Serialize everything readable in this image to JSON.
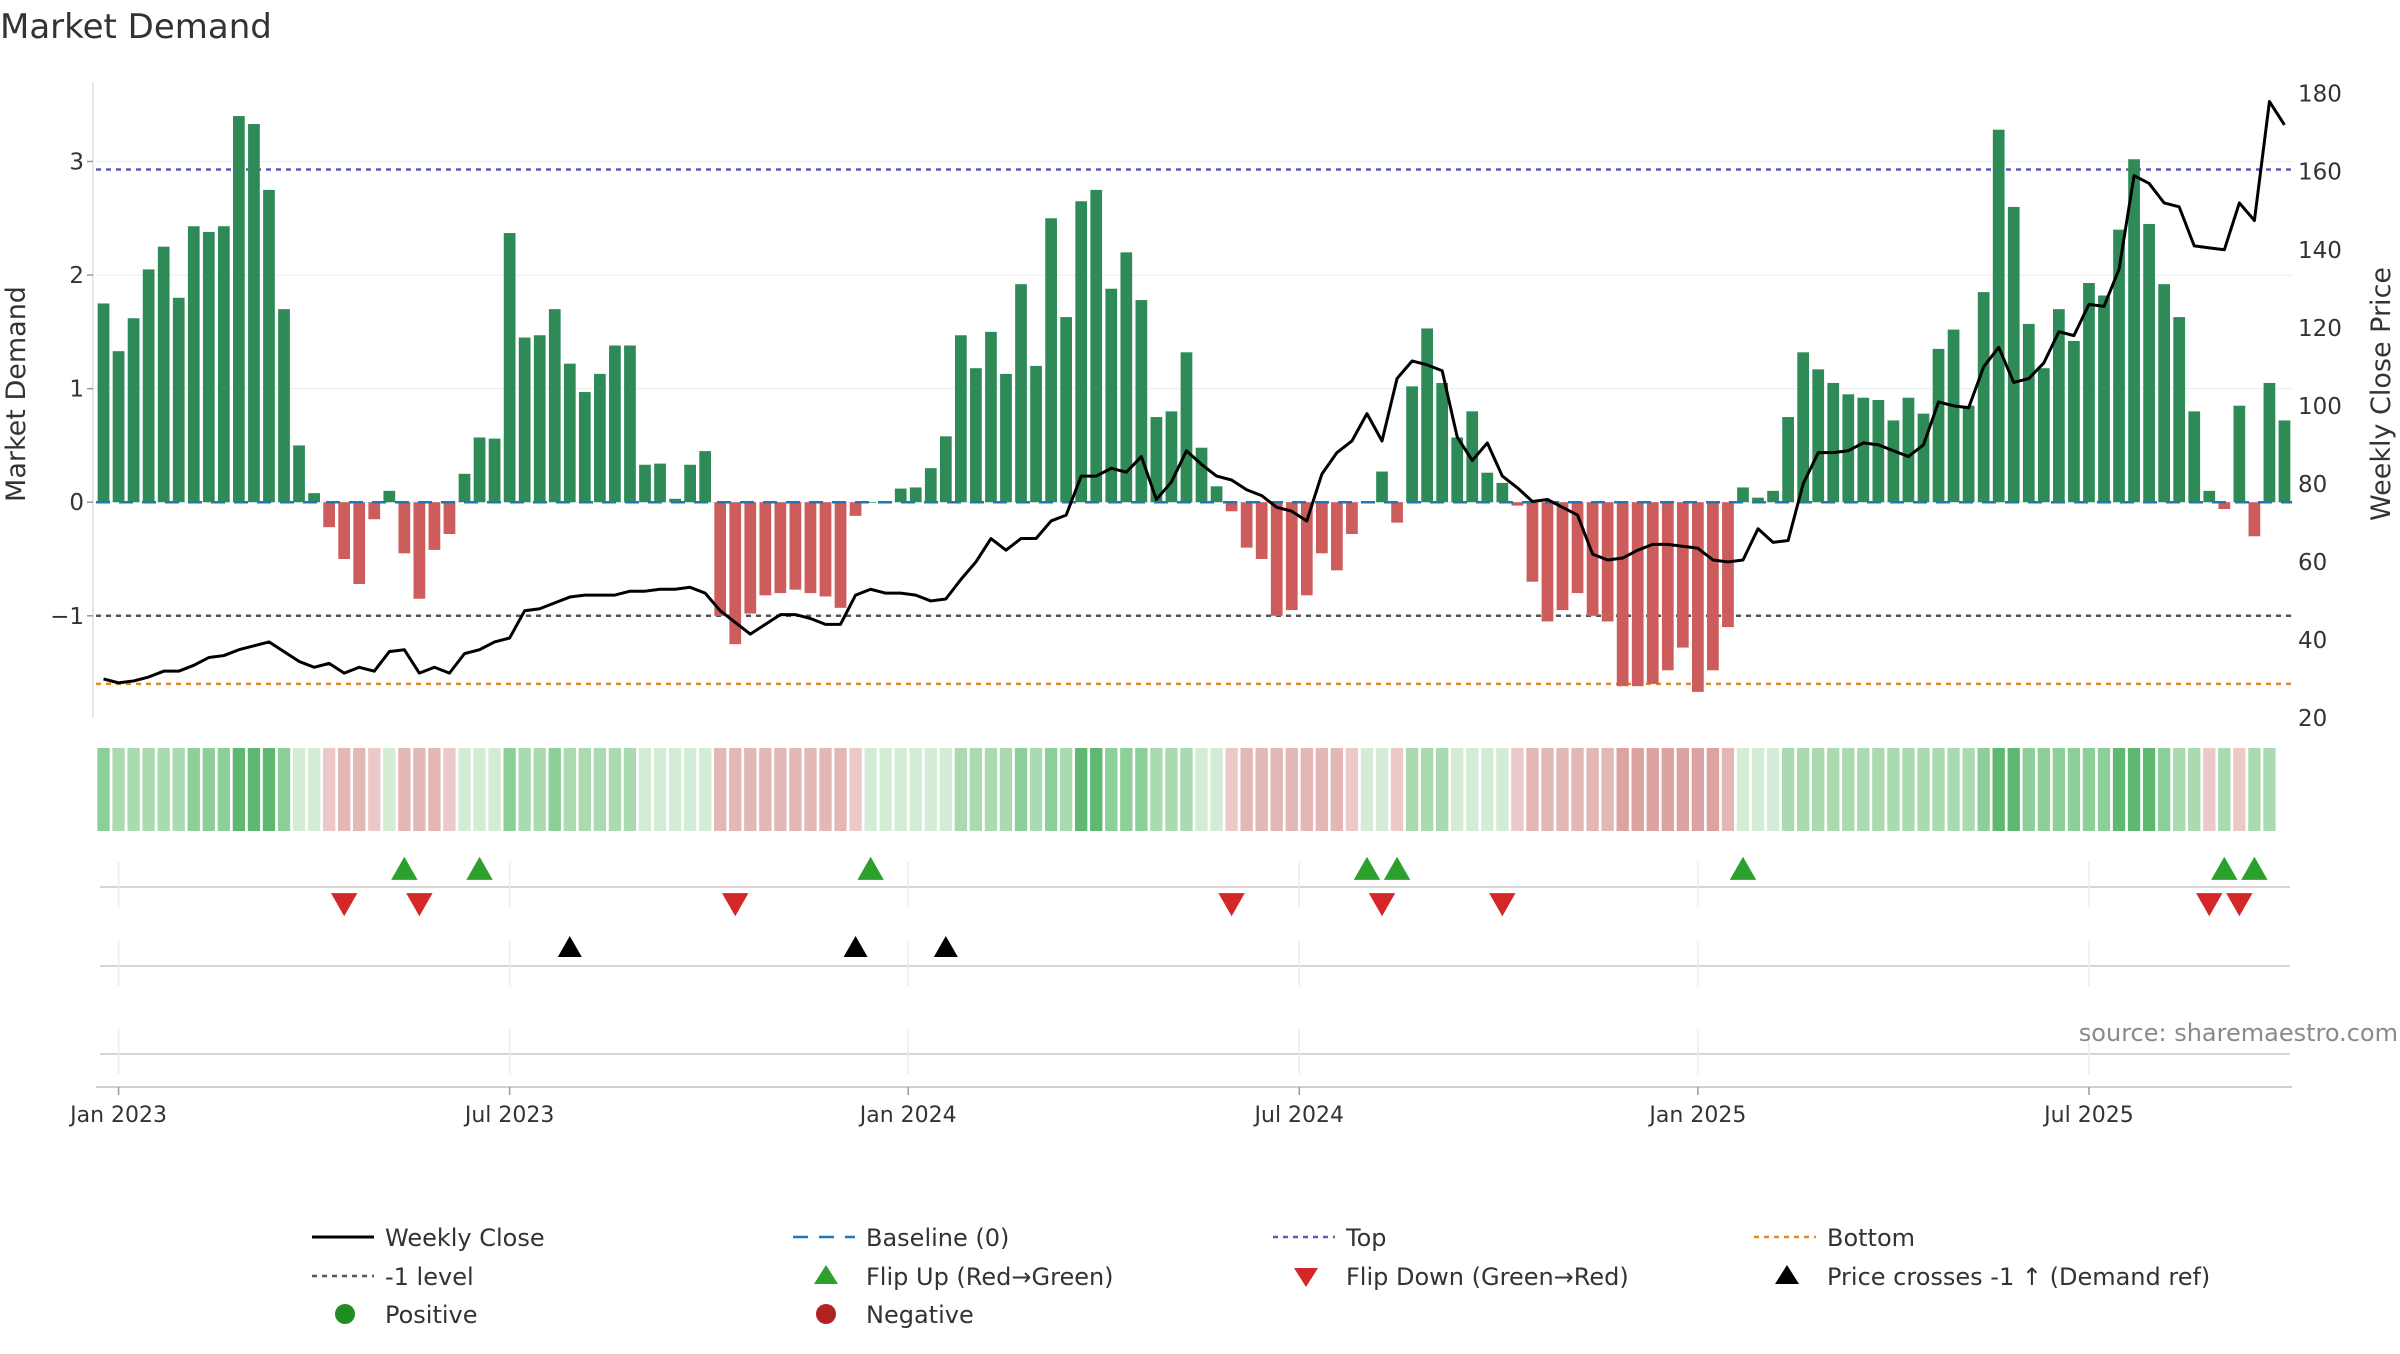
{
  "chart_data": {
    "type": "bar",
    "title": "Market Demand",
    "ylabel_left": "Market Demand",
    "ylabel_right": "Weekly Close Price",
    "source": "source: sharemaestro.com",
    "y_left_range": [
      -1.9,
      3.7
    ],
    "y_left_ticks": [
      -1,
      0,
      1,
      2,
      3
    ],
    "y_left_tick_labels": [
      "−1",
      "0",
      "1",
      "2",
      "3"
    ],
    "y_right_range": [
      20,
      183
    ],
    "y_right_ticks": [
      20,
      40,
      60,
      80,
      100,
      120,
      140,
      160,
      180
    ],
    "x_ticks": [
      {
        "week": 1,
        "label": "Jan 2023"
      },
      {
        "week": 27,
        "label": "Jul 2023"
      },
      {
        "week": 53.5,
        "label": "Jan 2024"
      },
      {
        "week": 79.5,
        "label": "Jul 2024"
      },
      {
        "week": 106,
        "label": "Jan 2025"
      },
      {
        "week": 132,
        "label": "Jul 2025"
      }
    ],
    "reference_lines": {
      "top": 2.93,
      "minus_one": -1,
      "bottom": -1.6,
      "baseline": 0
    },
    "demand": [
      1.75,
      1.33,
      1.62,
      2.05,
      2.25,
      1.8,
      2.43,
      2.38,
      2.43,
      3.4,
      3.33,
      2.75,
      1.7,
      0.5,
      0.08,
      -0.22,
      -0.5,
      -0.72,
      -0.15,
      0.1,
      -0.45,
      -0.85,
      -0.42,
      -0.28,
      0.25,
      0.57,
      0.56,
      2.37,
      1.45,
      1.47,
      1.7,
      1.22,
      0.97,
      1.13,
      1.38,
      1.38,
      0.33,
      0.34,
      0.03,
      0.33,
      0.45,
      -1.0,
      -1.25,
      -0.98,
      -0.82,
      -0.8,
      -0.77,
      -0.8,
      -0.83,
      -0.93,
      -0.12,
      0.0,
      0.0,
      0.12,
      0.13,
      0.3,
      0.58,
      1.47,
      1.18,
      1.5,
      1.13,
      1.92,
      1.2,
      2.5,
      1.63,
      2.65,
      2.75,
      1.88,
      2.2,
      1.78,
      0.75,
      0.8,
      1.32,
      0.48,
      0.14,
      -0.08,
      -0.4,
      -0.5,
      -1.0,
      -0.95,
      -0.82,
      -0.45,
      -0.6,
      -0.28,
      0.0,
      0.27,
      -0.18,
      1.02,
      1.53,
      1.05,
      0.57,
      0.8,
      0.26,
      0.17,
      -0.03,
      -0.7,
      -1.05,
      -0.95,
      -0.8,
      -1.0,
      -1.05,
      -1.62,
      -1.62,
      -1.6,
      -1.48,
      -1.28,
      -1.67,
      -1.48,
      -1.1,
      0.13,
      0.04,
      0.1,
      0.75,
      1.32,
      1.17,
      1.05,
      0.95,
      0.92,
      0.9,
      0.72,
      0.92,
      0.78,
      1.35,
      1.52,
      0.85,
      1.85,
      3.28,
      2.6,
      1.57,
      1.18,
      1.7,
      1.42,
      1.93,
      1.82,
      2.4,
      3.02,
      2.45,
      1.92,
      1.63,
      0.8,
      0.1,
      -0.06,
      0.85,
      -0.3,
      1.05,
      0.72
    ],
    "price": [
      30,
      29,
      29.5,
      30.5,
      32,
      32,
      33.5,
      35.5,
      36,
      37.5,
      38.5,
      39.5,
      37,
      34.5,
      33,
      34,
      31.5,
      33,
      32,
      37,
      37.5,
      31.5,
      33,
      31.5,
      36.5,
      37.5,
      39.5,
      40.5,
      47.5,
      48,
      49.5,
      51,
      51.5,
      51.5,
      51.5,
      52.5,
      52.5,
      53,
      53,
      53.5,
      52,
      47.5,
      44.5,
      41.5,
      44,
      46.5,
      46.5,
      45.5,
      44,
      44,
      51.5,
      53,
      52,
      52,
      51.5,
      50,
      50.5,
      55.5,
      60,
      66,
      63,
      66,
      66,
      70.5,
      72,
      82,
      82,
      84,
      83,
      87,
      76,
      80.5,
      88.5,
      85,
      82,
      81,
      78.5,
      77,
      74,
      73,
      70.5,
      82.5,
      88,
      91,
      98,
      91,
      107,
      111.5,
      110.5,
      109,
      92,
      86,
      90.5,
      82,
      79,
      75.5,
      76,
      74,
      72,
      62,
      60.5,
      61,
      63,
      64.5,
      64.5,
      64,
      63.5,
      60.5,
      60,
      60.5,
      68.5,
      65,
      65.5,
      80,
      88,
      88,
      88.5,
      90.5,
      90,
      88.5,
      87,
      90,
      101,
      100,
      99.5,
      110,
      115,
      106,
      107,
      111,
      119,
      118,
      126,
      125.5,
      135,
      159,
      157,
      152,
      151,
      141,
      140.5,
      140,
      152,
      147.5,
      178,
      172
    ],
    "heat_shade": [
      3,
      2,
      2,
      2,
      2,
      2,
      3,
      3,
      3,
      4,
      4,
      4,
      3,
      1,
      1,
      -1,
      -2,
      -2,
      -1,
      1,
      -2,
      -2,
      -2,
      -1,
      1,
      1,
      1,
      3,
      2,
      2,
      3,
      2,
      2,
      2,
      2,
      2,
      1,
      1,
      1,
      1,
      1,
      -2,
      -2,
      -2,
      -2,
      -2,
      -2,
      -2,
      -2,
      -2,
      -1,
      1,
      1,
      1,
      1,
      1,
      1,
      2,
      2,
      2,
      2,
      3,
      2,
      3,
      2,
      4,
      4,
      3,
      3,
      3,
      2,
      2,
      2,
      1,
      1,
      -1,
      -2,
      -2,
      -2,
      -2,
      -2,
      -2,
      -2,
      -1,
      1,
      1,
      -1,
      2,
      2,
      2,
      1,
      1,
      1,
      1,
      -1,
      -2,
      -2,
      -2,
      -2,
      -2,
      -2,
      -3,
      -3,
      -3,
      -3,
      -3,
      -3,
      -3,
      -2,
      1,
      1,
      1,
      2,
      2,
      2,
      2,
      2,
      2,
      2,
      2,
      2,
      2,
      2,
      2,
      2,
      3,
      4,
      4,
      3,
      3,
      3,
      3,
      3,
      3,
      4,
      4,
      4,
      3,
      2,
      2,
      -1,
      2,
      -1,
      2,
      2
    ],
    "flip_up_weeks": [
      20,
      25,
      51,
      84,
      86,
      109,
      141,
      143
    ],
    "flip_down_weeks": [
      16,
      21,
      42,
      75,
      85,
      93,
      140,
      142
    ],
    "price_cross_weeks": [
      31,
      50,
      56
    ],
    "legend": [
      {
        "key": "weekly-close",
        "label": "Weekly Close"
      },
      {
        "key": "baseline",
        "label": "Baseline (0)"
      },
      {
        "key": "top",
        "label": "Top"
      },
      {
        "key": "bottom",
        "label": "Bottom"
      },
      {
        "key": "minus-one",
        "label": "-1 level"
      },
      {
        "key": "flip-up",
        "label": "Flip Up (Red→Green)"
      },
      {
        "key": "flip-down",
        "label": "Flip Down (Green→Red)"
      },
      {
        "key": "price-cross",
        "label": "Price crosses -1 ↑ (Demand ref)"
      },
      {
        "key": "positive",
        "label": "Positive"
      },
      {
        "key": "negative",
        "label": "Negative"
      }
    ],
    "colors": {
      "positive_bar": "#2e8b57",
      "negative_bar": "#cd5c5c",
      "price_line": "#000000",
      "baseline": "#1f77b4",
      "top": "#5b5bb5",
      "minus_one": "#555555",
      "bottom": "#e08a2c",
      "flip_up": "#2ca02c",
      "flip_down": "#d62728",
      "price_cross": "#000000",
      "positive_dot": "#228b22",
      "negative_dot": "#b22222",
      "heat_green": [
        "#d4ebd6",
        "#aadbb0",
        "#8ccf98",
        "#5fb872"
      ],
      "heat_red": [
        "#ecc9c9",
        "#e4b7b7",
        "#dda3a3"
      ]
    }
  }
}
